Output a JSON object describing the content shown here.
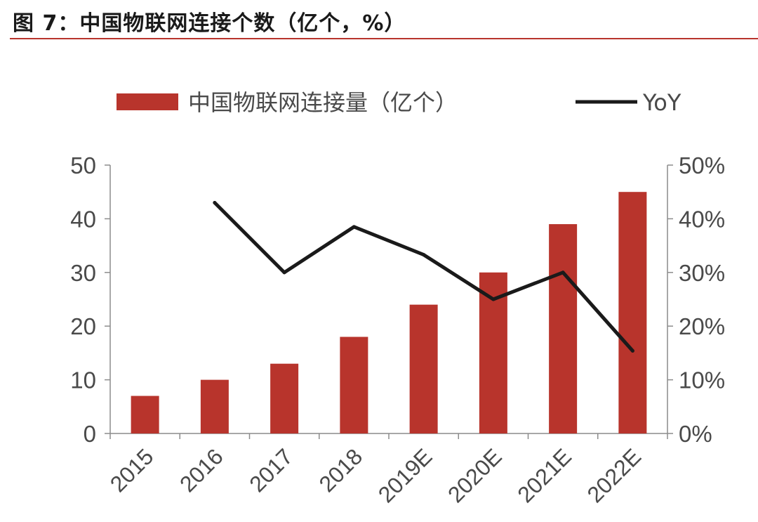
{
  "figure": {
    "title": "图 7：中国物联网连接个数（亿个，%）"
  },
  "colors": {
    "bar": "#b8342c",
    "line": "#1a1a1a",
    "axis": "#8c8c8c",
    "title_rule": "#b8342c"
  },
  "chart_data": {
    "type": "bar",
    "categories": [
      "2015",
      "2016",
      "2017",
      "2018",
      "2019E",
      "2020E",
      "2021E",
      "2022E"
    ],
    "series": [
      {
        "name": "中国物联网连接量（亿个）",
        "type": "bar",
        "axis": "left",
        "values": [
          7,
          10,
          13,
          18,
          24,
          30,
          39,
          45
        ]
      },
      {
        "name": "YoY",
        "type": "line",
        "axis": "right",
        "values": [
          null,
          0.43,
          0.3,
          0.385,
          0.333,
          0.25,
          0.3,
          0.154
        ]
      }
    ],
    "yleft": {
      "ylim": [
        0,
        50
      ],
      "ticks": [
        "0",
        "10",
        "20",
        "30",
        "40",
        "50"
      ]
    },
    "yright": {
      "ylim": [
        0,
        0.5
      ],
      "ticks": [
        "0%",
        "10%",
        "20%",
        "30%",
        "40%",
        "50%"
      ]
    },
    "grid": false,
    "legend": "top"
  }
}
